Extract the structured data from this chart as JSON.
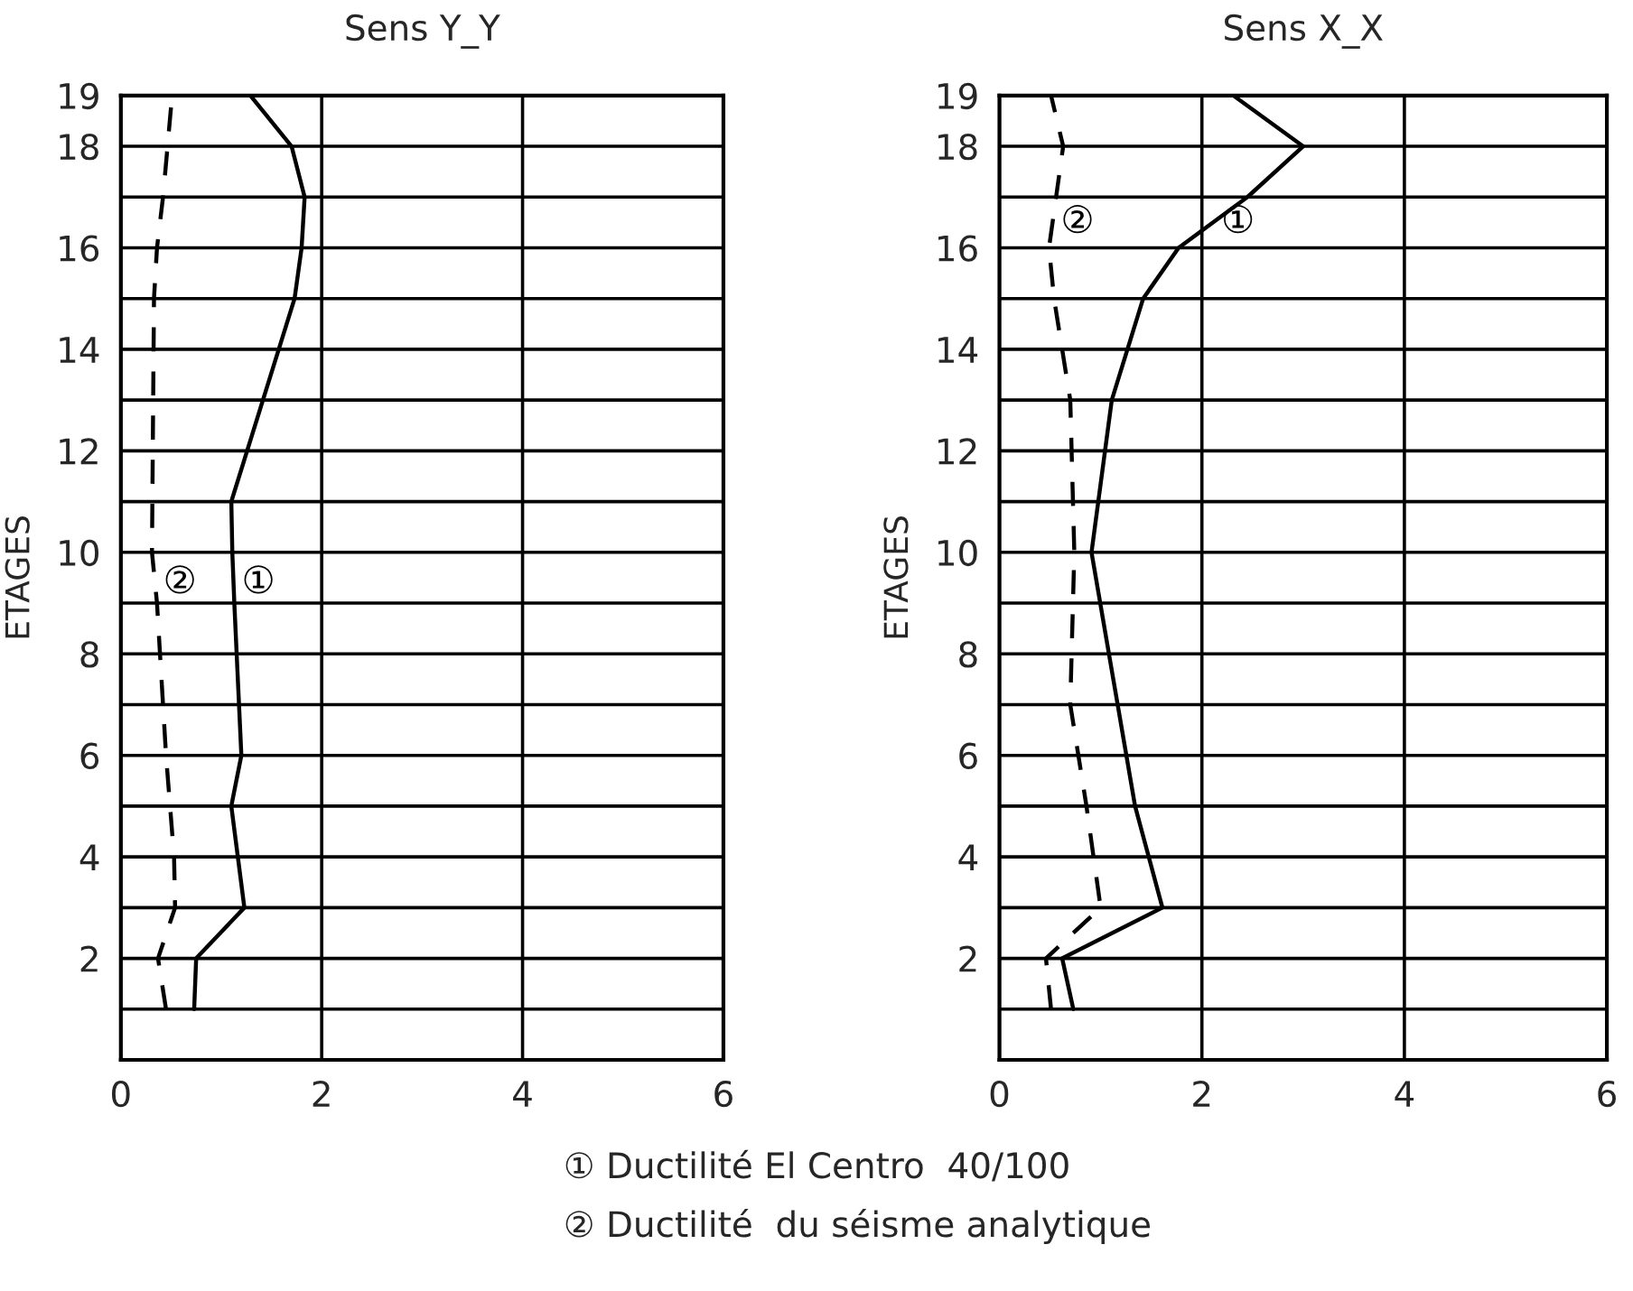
{
  "chart_data": [
    {
      "type": "line",
      "title": "Sens Y_Y",
      "ylabel": "ETAGES",
      "orientation": "horizontal",
      "grid": true,
      "marker": "none",
      "xlim": [
        0,
        6
      ],
      "xticks": [
        0,
        2,
        4,
        6
      ],
      "ylim": [
        0,
        19
      ],
      "yticks": [
        {
          "value": 1,
          "label": null
        },
        2,
        {
          "value": 3,
          "label": null
        },
        4,
        {
          "value": 5,
          "label": null
        },
        6,
        {
          "value": 7,
          "label": null
        },
        8,
        {
          "value": 9,
          "label": null
        },
        10,
        {
          "value": 11,
          "label": null
        },
        12,
        {
          "value": 13,
          "label": null
        },
        14,
        {
          "value": 15,
          "label": null
        },
        16,
        {
          "value": 17,
          "label": null
        },
        18,
        19
      ],
      "series": [
        {
          "name": "①",
          "color": "#000000",
          "line_style": "solid",
          "x": [
            1,
            2,
            3,
            5,
            6,
            9,
            10,
            11,
            15,
            16,
            17,
            18,
            19
          ],
          "values": [
            0.73,
            0.75,
            1.23,
            1.1,
            1.2,
            1.13,
            1.11,
            1.1,
            1.73,
            1.8,
            1.83,
            1.7,
            1.29
          ]
        },
        {
          "name": "②",
          "color": "#000000",
          "line_style": "dashed",
          "x": [
            1,
            2,
            3,
            4,
            6,
            9,
            10,
            15,
            16,
            17,
            19
          ],
          "values": [
            0.45,
            0.37,
            0.54,
            0.53,
            0.45,
            0.36,
            0.31,
            0.33,
            0.36,
            0.42,
            0.51
          ]
        }
      ]
    },
    {
      "type": "line",
      "title": "Sens X_X",
      "ylabel": "ETAGES",
      "orientation": "horizontal",
      "grid": true,
      "marker": "none",
      "xlim": [
        0,
        6
      ],
      "xticks": [
        0,
        2,
        4,
        6
      ],
      "ylim": [
        0,
        19
      ],
      "yticks": [
        {
          "value": 1,
          "label": null
        },
        2,
        {
          "value": 3,
          "label": null
        },
        4,
        {
          "value": 5,
          "label": null
        },
        6,
        {
          "value": 7,
          "label": null
        },
        8,
        {
          "value": 9,
          "label": null
        },
        10,
        {
          "value": 11,
          "label": null
        },
        12,
        {
          "value": 13,
          "label": null
        },
        14,
        {
          "value": 15,
          "label": null
        },
        16,
        {
          "value": 17,
          "label": null
        },
        18,
        19
      ],
      "series": [
        {
          "name": "①",
          "color": "#000000",
          "line_style": "solid",
          "x": [
            1,
            2,
            3,
            5,
            10,
            13,
            15,
            16,
            17,
            18,
            19
          ],
          "values": [
            0.73,
            0.62,
            1.61,
            1.34,
            0.91,
            1.11,
            1.42,
            1.77,
            2.45,
            3.0,
            2.31
          ]
        },
        {
          "name": "②",
          "color": "#000000",
          "line_style": "dashed",
          "x": [
            1,
            2,
            3,
            5,
            7,
            10,
            13,
            15,
            16,
            18,
            19
          ],
          "values": [
            0.51,
            0.46,
            1.0,
            0.86,
            0.7,
            0.74,
            0.7,
            0.54,
            0.49,
            0.63,
            0.51
          ]
        }
      ],
      "annotations": [
        "① Ductilité El Centro  40/100",
        "② Ductilité  du séisme analytique"
      ]
    }
  ]
}
